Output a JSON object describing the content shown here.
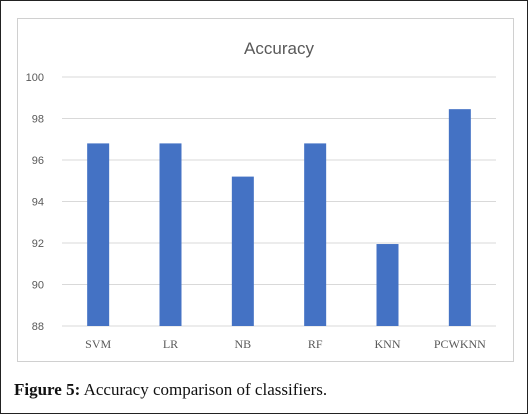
{
  "chart_data": {
    "type": "bar",
    "title": "Accuracy",
    "categories": [
      "SVM",
      "LR",
      "NB",
      "RF",
      "KNN",
      "PCWKNN"
    ],
    "values": [
      96.8,
      96.8,
      95.2,
      96.8,
      91.95,
      98.45
    ],
    "ylim": [
      88,
      100
    ],
    "yticks": [
      88,
      90,
      92,
      94,
      96,
      98,
      100
    ],
    "xlabel": "",
    "ylabel": "",
    "grid": true,
    "bar_color": "#4472c4",
    "grid_color": "#d9d9d9",
    "text_color": "#595959"
  },
  "caption": {
    "label": "Figure 5:",
    "text": " Accuracy comparison of classifiers."
  }
}
